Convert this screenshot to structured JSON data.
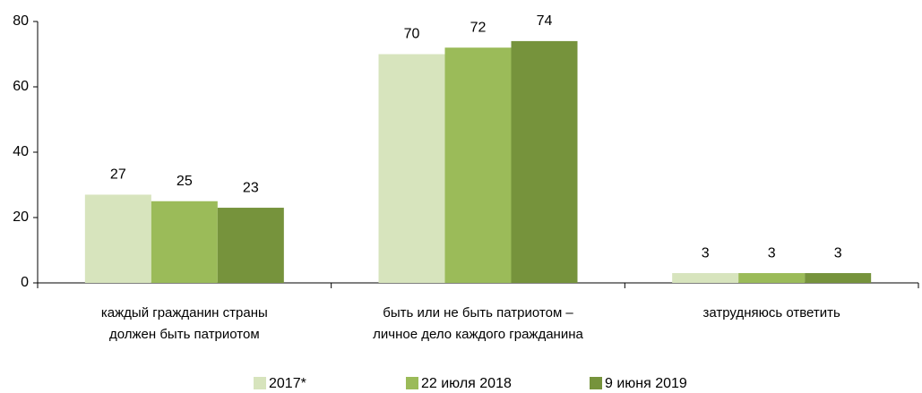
{
  "chart_data": {
    "type": "bar",
    "categories": [
      "каждый гражданин страны\nдолжен быть патриотом",
      "быть или не быть патриотом –\nличное дело каждого гражданина",
      "затрудняюсь ответить"
    ],
    "series": [
      {
        "name": "2017*",
        "color": "#d7e4bd",
        "values": [
          27,
          70,
          3
        ]
      },
      {
        "name": "22 июля 2018",
        "color": "#9bbb59",
        "values": [
          25,
          72,
          3
        ]
      },
      {
        "name": "9 июня 2019",
        "color": "#76933c",
        "values": [
          23,
          74,
          3
        ]
      }
    ],
    "ylim": [
      0,
      80
    ],
    "yticks": [
      0,
      20,
      40,
      60,
      80
    ],
    "grid": false,
    "legend": "bottom"
  }
}
